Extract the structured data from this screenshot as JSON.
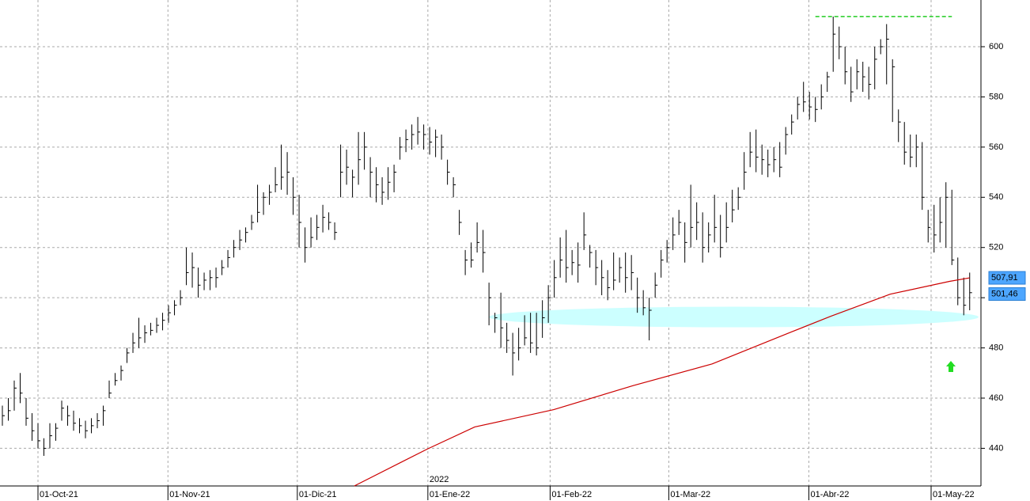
{
  "chart_data": {
    "type": "ohlc",
    "xlim": [
      -0.4,
      164.9
    ],
    "ylim": [
      425,
      618.6
    ],
    "yticks": [
      440,
      460,
      480,
      500,
      520,
      540,
      560,
      580,
      600
    ],
    "xticks": [
      {
        "value": 6,
        "label": "01-Oct-21"
      },
      {
        "value": 27.9,
        "label": "01-Nov-21"
      },
      {
        "value": 49.7,
        "label": "01-Dic-21"
      },
      {
        "value": 71.7,
        "label": "01-Ene-22"
      },
      {
        "value": 92.3,
        "label": "01-Feb-22"
      },
      {
        "value": 112.3,
        "label": "01-Mar-22"
      },
      {
        "value": 135.9,
        "label": "01-Abr-22"
      },
      {
        "value": 156.5,
        "label": "01-May-22"
      }
    ],
    "year_label": {
      "value": 71.7,
      "label": "2022"
    },
    "grid": true,
    "price": {
      "color": "#000000",
      "high": [
        457,
        460,
        467,
        470,
        460,
        454,
        450,
        444,
        450,
        450,
        459,
        457,
        455,
        452,
        451,
        452,
        454,
        457,
        467,
        470,
        473,
        480,
        486,
        492,
        489,
        490,
        492,
        494,
        497,
        499,
        503,
        520,
        518,
        512,
        510,
        511,
        512,
        515,
        519,
        523,
        527,
        528,
        533,
        545,
        542,
        545,
        552,
        561,
        558,
        548,
        541,
        528,
        532,
        533,
        537,
        534,
        530,
        561,
        559,
        551,
        566,
        566,
        556,
        552,
        548,
        552,
        553,
        564,
        567,
        569,
        572,
        569,
        568,
        567,
        565,
        555,
        548,
        535,
        519,
        522,
        530,
        527,
        506,
        494,
        502,
        490,
        486,
        488,
        493,
        494,
        494,
        499,
        505,
        515,
        524,
        527,
        519,
        522,
        534,
        521,
        519,
        515,
        511,
        518,
        516,
        518,
        517,
        508,
        503,
        500,
        510,
        519,
        523,
        532,
        535,
        530,
        545,
        538,
        534,
        530,
        541,
        533,
        538,
        543,
        544,
        558,
        566,
        567,
        561,
        559,
        560,
        562,
        568,
        573,
        580,
        586,
        582,
        580,
        585,
        590,
        612,
        608,
        600,
        592,
        595,
        594,
        592,
        600,
        603,
        609,
        595,
        575,
        570,
        565,
        565,
        562,
        535,
        537,
        540,
        546,
        543,
        516,
        508,
        510
      ],
      "low": [
        449,
        451,
        455,
        458,
        449,
        443,
        440,
        437,
        440,
        443,
        451,
        449,
        447,
        446,
        444,
        446,
        448,
        449,
        460,
        465,
        467,
        474,
        478,
        480,
        482,
        485,
        486,
        487,
        490,
        493,
        497,
        505,
        504,
        500,
        503,
        503,
        504,
        509,
        512,
        516,
        519,
        522,
        527,
        530,
        533,
        537,
        542,
        543,
        541,
        533,
        520,
        514,
        520,
        523,
        526,
        527,
        523,
        540,
        545,
        540,
        545,
        551,
        540,
        538,
        537,
        539,
        542,
        555,
        558,
        559,
        561,
        559,
        557,
        556,
        555,
        545,
        540,
        525,
        509,
        512,
        518,
        510,
        489,
        486,
        480,
        478,
        469,
        475,
        481,
        478,
        477,
        484,
        490,
        500,
        508,
        506,
        509,
        506,
        519,
        512,
        505,
        501,
        499,
        503,
        506,
        502,
        503,
        494,
        493,
        483,
        500,
        508,
        514,
        519,
        525,
        514,
        520,
        523,
        514,
        518,
        522,
        516,
        522,
        530,
        535,
        543,
        552,
        550,
        549,
        548,
        550,
        548,
        557,
        565,
        571,
        574,
        571,
        570,
        575,
        582,
        590,
        595,
        585,
        578,
        583,
        582,
        579,
        583,
        597,
        585,
        570,
        562,
        553,
        552,
        552,
        535,
        522,
        518,
        522,
        520,
        513,
        497,
        493,
        495
      ],
      "close": [
        453,
        455,
        464,
        462,
        452,
        447,
        443,
        440,
        445,
        448,
        456,
        453,
        450,
        449,
        447,
        449,
        451,
        455,
        462,
        467,
        471,
        478,
        482,
        484,
        486,
        487,
        489,
        491,
        494,
        497,
        500,
        510,
        512,
        505,
        507,
        508,
        508,
        512,
        516,
        520,
        523,
        526,
        530,
        534,
        540,
        542,
        545,
        548,
        550,
        540,
        530,
        520,
        524,
        528,
        532,
        530,
        526,
        550,
        552,
        548,
        555,
        560,
        550,
        545,
        542,
        546,
        550,
        560,
        563,
        565,
        566,
        565,
        562,
        564,
        560,
        550,
        545,
        530,
        515,
        515,
        522,
        518,
        500,
        492,
        488,
        483,
        478,
        480,
        484,
        482,
        480,
        492,
        500,
        508,
        515,
        512,
        514,
        513,
        525,
        518,
        512,
        508,
        504,
        507,
        512,
        508,
        510,
        500,
        496,
        495,
        505,
        515,
        520,
        525,
        530,
        522,
        528,
        530,
        520,
        525,
        528,
        520,
        528,
        535,
        540,
        550,
        558,
        556,
        555,
        553,
        555,
        552,
        565,
        570,
        577,
        578,
        576,
        575,
        580,
        588,
        605,
        600,
        590,
        582,
        590,
        588,
        585,
        595,
        600,
        603,
        592,
        570,
        558,
        556,
        560,
        540,
        528,
        525,
        530,
        540,
        515,
        500,
        497,
        502
      ]
    },
    "ma": {
      "color": "#cc0000",
      "x": [
        59.3,
        71.6,
        79.6,
        92.9,
        106.3,
        119.6,
        132.9,
        139.6,
        149.6,
        159.6,
        163
      ],
      "values": [
        425,
        439.7,
        448.5,
        455.4,
        465,
        473.6,
        486.3,
        492.6,
        501.4,
        506.5,
        507.9
      ]
    },
    "resistance": {
      "value": 612,
      "x": [
        137,
        160
      ],
      "color": "#22cc22"
    },
    "support_zone": {
      "value": 492.3,
      "x": [
        82,
        164.5
      ],
      "color": "#ccffff"
    },
    "price_labels": [
      {
        "value": 507.91,
        "label": "507,91"
      },
      {
        "value": 501.46,
        "label": "501,46"
      }
    ]
  }
}
